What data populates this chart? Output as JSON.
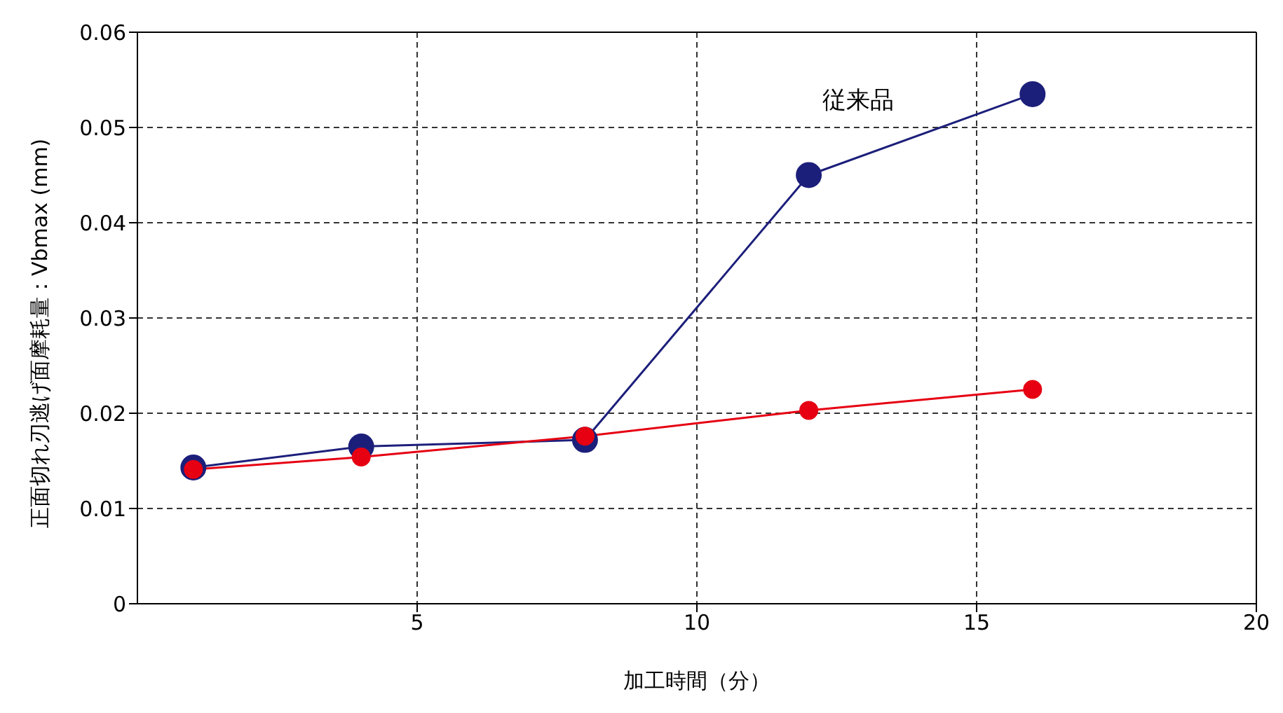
{
  "chart_data": {
    "type": "line",
    "xlabel": "加工時間（分）",
    "ylabel": "正面切れ刃逃げ面摩耗量：Vbmax (mm)",
    "x": [
      1,
      4,
      8,
      12,
      16
    ],
    "series": [
      {
        "name": "従来品",
        "color": "#1c1f7a",
        "values": [
          0.0143,
          0.0165,
          0.0172,
          0.045,
          0.0535
        ]
      },
      {
        "color": "#e60012",
        "values": [
          0.0141,
          0.0154,
          0.0176,
          0.0203,
          0.0225
        ]
      }
    ],
    "xlim": [
      0,
      20
    ],
    "xticks": [
      5,
      10,
      15,
      20
    ],
    "ylim": [
      0,
      0.06
    ],
    "yticks": [
      0,
      0.01,
      0.02,
      0.03,
      0.04,
      0.05,
      0.06
    ],
    "grid": true,
    "legend": false,
    "marker": "circle",
    "line_style": "solid"
  }
}
